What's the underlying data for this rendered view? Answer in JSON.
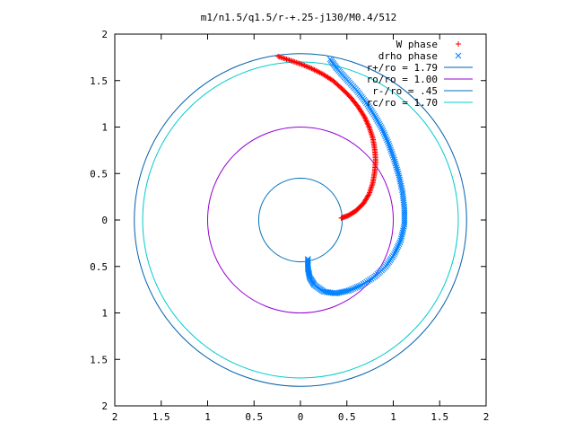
{
  "chart_data": {
    "type": "scatter",
    "title": "m1/n1.5/q1.5/r-+.25-j130/M0.4/512",
    "xlabel": "",
    "ylabel": "",
    "xlim": [
      -2,
      2
    ],
    "ylim": [
      -2,
      2
    ],
    "x_ticks": [
      -2,
      -1.5,
      -1,
      -0.5,
      0,
      0.5,
      1,
      1.5,
      2
    ],
    "y_ticks": [
      -2,
      -1.5,
      -1,
      -0.5,
      0,
      0.5,
      1,
      1.5,
      2
    ],
    "x_tick_labels": [
      "2",
      "1.5",
      "1",
      "0.5",
      "0",
      "0.5",
      "1",
      "1.5",
      "2"
    ],
    "y_tick_labels": [
      "2",
      "1.5",
      "1",
      "0.5",
      "0",
      "0.5",
      "1",
      "1.5",
      "2"
    ],
    "grid": false,
    "legend_position": "top-right",
    "series": [
      {
        "name": "W phase",
        "kind": "points",
        "marker": "plus",
        "color": "#ff0000",
        "points": [
          [
            0.44,
            0.02
          ],
          [
            0.52,
            0.05
          ],
          [
            0.6,
            0.1
          ],
          [
            0.68,
            0.18
          ],
          [
            0.74,
            0.28
          ],
          [
            0.78,
            0.4
          ],
          [
            0.8,
            0.52
          ],
          [
            0.81,
            0.64
          ],
          [
            0.8,
            0.76
          ],
          [
            0.78,
            0.88
          ],
          [
            0.74,
            1.0
          ],
          [
            0.69,
            1.11
          ],
          [
            0.62,
            1.22
          ],
          [
            0.54,
            1.32
          ],
          [
            0.45,
            1.41
          ],
          [
            0.35,
            1.5
          ],
          [
            0.24,
            1.57
          ],
          [
            0.12,
            1.63
          ],
          [
            0.0,
            1.68
          ],
          [
            -0.12,
            1.72
          ],
          [
            -0.24,
            1.76
          ]
        ]
      },
      {
        "name": "drho phase",
        "kind": "points",
        "marker": "cross",
        "color": "#0080ff",
        "points": [
          [
            0.08,
            -0.42
          ],
          [
            0.08,
            -0.52
          ],
          [
            0.1,
            -0.62
          ],
          [
            0.15,
            -0.7
          ],
          [
            0.25,
            -0.77
          ],
          [
            0.38,
            -0.79
          ],
          [
            0.52,
            -0.76
          ],
          [
            0.66,
            -0.7
          ],
          [
            0.8,
            -0.61
          ],
          [
            0.92,
            -0.5
          ],
          [
            1.01,
            -0.37
          ],
          [
            1.08,
            -0.22
          ],
          [
            1.12,
            -0.05
          ],
          [
            1.12,
            0.12
          ],
          [
            1.1,
            0.3
          ],
          [
            1.06,
            0.48
          ],
          [
            1.01,
            0.65
          ],
          [
            0.95,
            0.82
          ],
          [
            0.88,
            0.98
          ],
          [
            0.8,
            1.12
          ],
          [
            0.71,
            1.26
          ],
          [
            0.61,
            1.39
          ],
          [
            0.5,
            1.51
          ],
          [
            0.4,
            1.62
          ],
          [
            0.32,
            1.73
          ]
        ]
      },
      {
        "name": "r+/ro = 1.79",
        "kind": "circle",
        "radius": 1.79,
        "color": "#0060ad"
      },
      {
        "name": "ro/ro = 1.00",
        "kind": "circle",
        "radius": 1.0,
        "color": "#9400d3"
      },
      {
        "name": "r-/ro = .45",
        "kind": "circle",
        "radius": 0.45,
        "color": "#0072bd"
      },
      {
        "name": "rc/ro = 1.70",
        "kind": "circle",
        "radius": 1.7,
        "color": "#00cccc"
      }
    ]
  }
}
